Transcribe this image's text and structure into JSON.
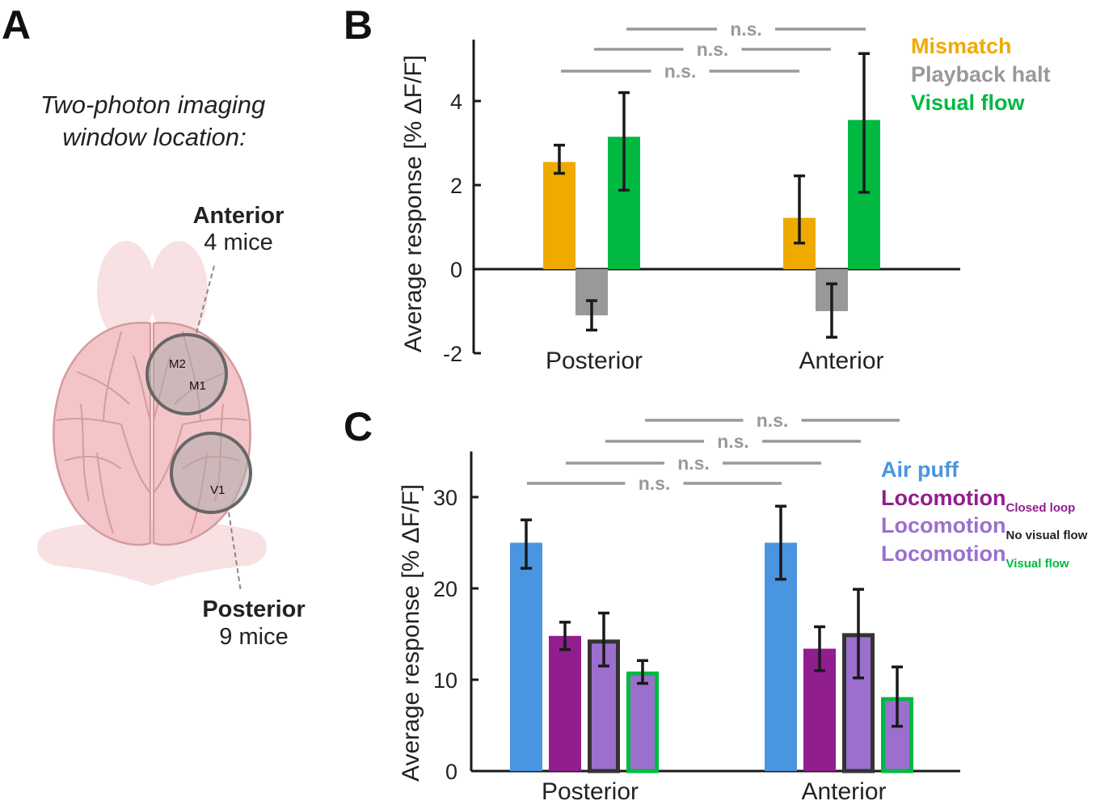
{
  "panel_a": {
    "letter": "A",
    "title_line1": "Two-photon imaging",
    "title_line2": "window location:",
    "anterior": {
      "name": "Anterior",
      "count": "4 mice"
    },
    "posterior": {
      "name": "Posterior",
      "count": "9 mice"
    },
    "area_labels": {
      "m2": "M2",
      "m1": "M1",
      "v1": "V1"
    }
  },
  "colors": {
    "mismatch": "#EFAA00",
    "playback": "#999999",
    "visual_flow": "#00B943",
    "air_puff": "#4A95E0",
    "loco_closed": "#911E8E",
    "loco_light": "#9C6FCF",
    "outline_dark": "#333333",
    "brain_fill": "#F3C5C8",
    "brain_line": "#D69A9E",
    "brain_ghost": "#F7E1E2"
  },
  "chart_data": [
    {
      "panel": "B",
      "type": "bar",
      "ylabel": "Average response [% ΔF/F]",
      "ylim": [
        -2,
        5.5
      ],
      "yticks": [
        -2,
        0,
        2,
        4
      ],
      "categories": [
        "Posterior",
        "Anterior"
      ],
      "series": [
        {
          "name": "Mismatch",
          "values": [
            2.55,
            1.22
          ],
          "err_low": [
            2.28,
            0.62
          ],
          "err_high": [
            2.95,
            2.22
          ]
        },
        {
          "name": "Playback halt",
          "values": [
            -1.1,
            -1.0
          ],
          "err_low": [
            -1.45,
            -1.62
          ],
          "err_high": [
            -0.75,
            -0.35
          ]
        },
        {
          "name": "Visual flow",
          "values": [
            3.15,
            3.55
          ],
          "err_low": [
            1.88,
            1.83
          ],
          "err_high": [
            4.2,
            5.13
          ]
        }
      ],
      "significance": [
        "n.s.",
        "n.s.",
        "n.s."
      ]
    },
    {
      "panel": "C",
      "type": "bar",
      "ylabel": "Average response [% ΔF/F]",
      "ylim": [
        0,
        35
      ],
      "yticks": [
        0,
        10,
        20,
        30
      ],
      "categories": [
        "Posterior",
        "Anterior"
      ],
      "legend": [
        {
          "main": "Air puff",
          "sub": ""
        },
        {
          "main": "Locomotion",
          "sub": "Closed loop"
        },
        {
          "main": "Locomotion",
          "sub": "No visual flow"
        },
        {
          "main": "Locomotion",
          "sub": "Visual flow"
        }
      ],
      "series": [
        {
          "values": [
            25.0,
            25.0
          ],
          "err_low": [
            22.2,
            21.0
          ],
          "err_high": [
            27.5,
            29.0
          ]
        },
        {
          "values": [
            14.8,
            13.4
          ],
          "err_low": [
            13.3,
            11.0
          ],
          "err_high": [
            16.3,
            15.8
          ]
        },
        {
          "values": [
            14.4,
            15.1
          ],
          "err_low": [
            11.5,
            10.2
          ],
          "err_high": [
            17.3,
            19.9
          ]
        },
        {
          "values": [
            10.9,
            8.1
          ],
          "err_low": [
            9.6,
            4.9
          ],
          "err_high": [
            12.1,
            11.4
          ]
        }
      ],
      "significance": [
        "n.s.",
        "n.s.",
        "n.s.",
        "n.s."
      ]
    }
  ]
}
